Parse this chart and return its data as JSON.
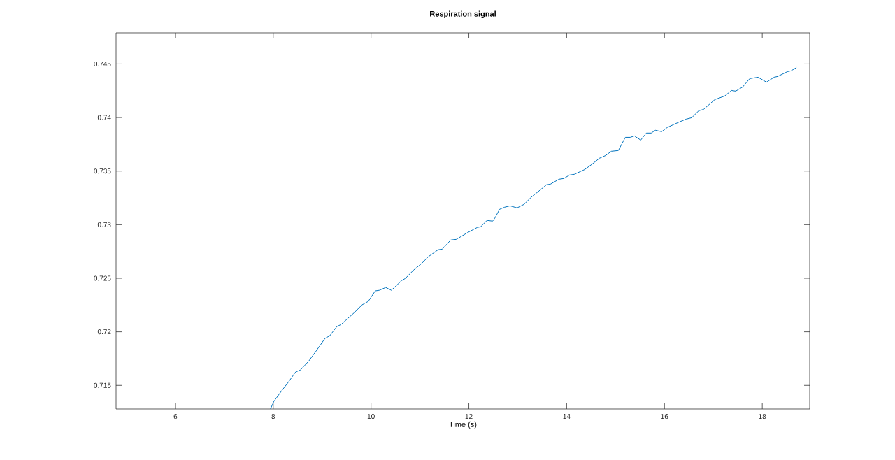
{
  "chart_data": {
    "type": "line",
    "title": "Respiration signal",
    "xlabel": "Time (s)",
    "xlim": [
      4.786,
      18.97
    ],
    "ylim": [
      0.7128,
      0.7479
    ],
    "xticks": [
      6,
      8,
      10,
      12,
      14,
      16,
      18
    ],
    "yticks": [
      0.715,
      0.72,
      0.725,
      0.73,
      0.735,
      0.74,
      0.745
    ],
    "grid": false,
    "marker": "none",
    "line_style": "solid",
    "series": [
      {
        "color": "#0072bd",
        "x": [
          7.943,
          8.014,
          8.171,
          8.314,
          8.457,
          8.557,
          8.729,
          8.886,
          9.057,
          9.157,
          9.3,
          9.386,
          9.514,
          9.657,
          9.814,
          9.943,
          10.086,
          10.171,
          10.3,
          10.414,
          10.629,
          10.7,
          10.871,
          11.029,
          11.171,
          11.371,
          11.457,
          11.629,
          11.743,
          11.986,
          12.171,
          12.243,
          12.371,
          12.486,
          12.529,
          12.629,
          12.729,
          12.843,
          12.986,
          13.129,
          13.271,
          13.414,
          13.586,
          13.671,
          13.843,
          13.943,
          14.057,
          14.157,
          14.371,
          14.529,
          14.671,
          14.8,
          14.914,
          15.057,
          15.2,
          15.3,
          15.386,
          15.514,
          15.629,
          15.729,
          15.814,
          15.943,
          16.057,
          16.271,
          16.443,
          16.557,
          16.7,
          16.8,
          17.029,
          17.229,
          17.371,
          17.457,
          17.6,
          17.743,
          17.914,
          18.086,
          18.243,
          18.314,
          18.514,
          18.586,
          18.7
        ],
        "values": [
          0.7128,
          0.71351,
          0.71449,
          0.71533,
          0.71625,
          0.71644,
          0.71729,
          0.71827,
          0.71938,
          0.71964,
          0.72049,
          0.72068,
          0.7212,
          0.72179,
          0.72251,
          0.72284,
          0.72382,
          0.72388,
          0.72414,
          0.72388,
          0.72479,
          0.72498,
          0.72577,
          0.72635,
          0.72701,
          0.72766,
          0.72772,
          0.72857,
          0.72863,
          0.72929,
          0.72974,
          0.72981,
          0.7304,
          0.73033,
          0.73059,
          0.73144,
          0.73163,
          0.73176,
          0.73157,
          0.7319,
          0.73255,
          0.73307,
          0.73372,
          0.73379,
          0.73424,
          0.73431,
          0.73463,
          0.7347,
          0.73515,
          0.73568,
          0.7362,
          0.73646,
          0.73685,
          0.73692,
          0.73815,
          0.73815,
          0.73828,
          0.73789,
          0.73855,
          0.73855,
          0.73881,
          0.73868,
          0.73907,
          0.73952,
          0.73985,
          0.73998,
          0.74063,
          0.74076,
          0.74167,
          0.742,
          0.74252,
          0.74246,
          0.74285,
          0.74363,
          0.74376,
          0.7433,
          0.74376,
          0.74383,
          0.74428,
          0.74435,
          0.74467
        ]
      }
    ]
  }
}
